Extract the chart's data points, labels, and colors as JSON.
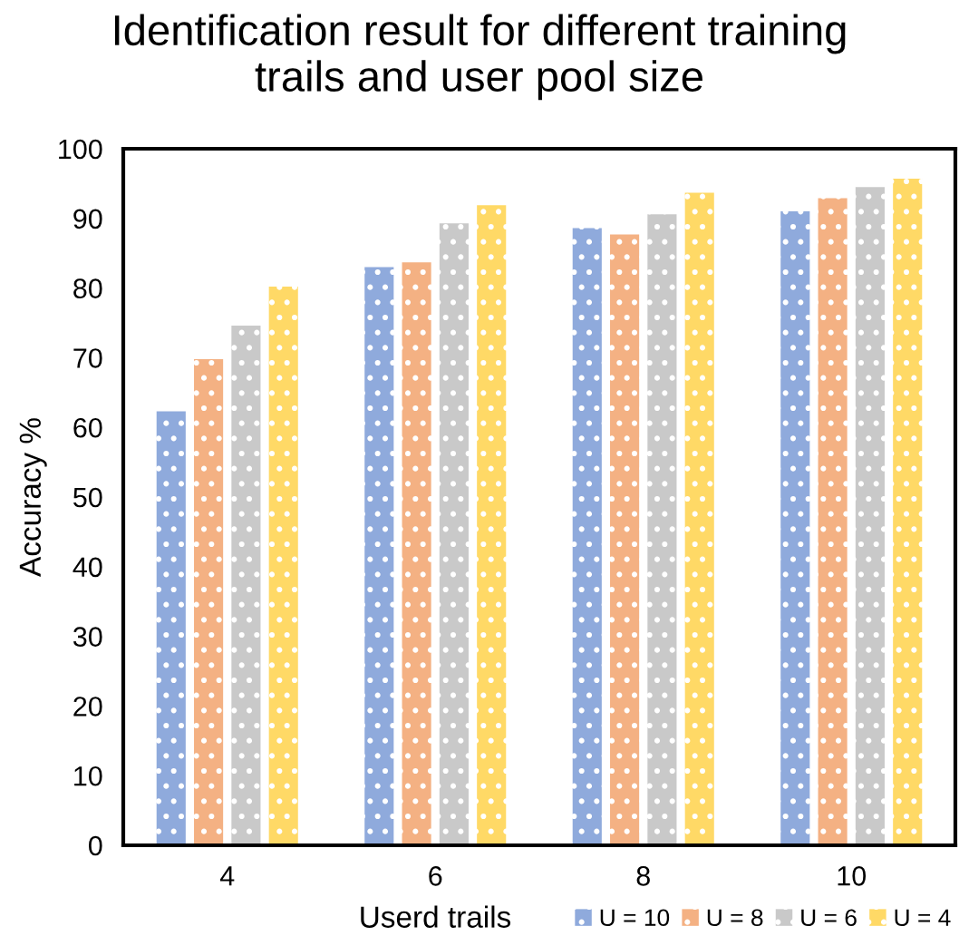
{
  "chart_data": {
    "type": "bar",
    "title": "Identification result for different training\ntrails and user pool size",
    "xlabel": "Userd trails",
    "ylabel": "Accuracy %",
    "categories": [
      "4",
      "6",
      "8",
      "10"
    ],
    "series": [
      {
        "name": "U = 10",
        "color": "#8faadc",
        "values": [
          62.3,
          83.0,
          88.6,
          91.0
        ]
      },
      {
        "name": "U = 8",
        "color": "#f4b183",
        "values": [
          69.8,
          83.7,
          87.7,
          92.9
        ]
      },
      {
        "name": "U = 6",
        "color": "#c9c9c9",
        "values": [
          74.6,
          89.3,
          90.6,
          94.5
        ]
      },
      {
        "name": "U = 4",
        "color": "#ffd966",
        "values": [
          80.2,
          91.9,
          93.7,
          95.7
        ]
      }
    ],
    "ylim": [
      0,
      100
    ],
    "yticks": [
      0,
      10,
      20,
      30,
      40,
      50,
      60,
      70,
      80,
      90,
      100
    ],
    "grid": false,
    "legend": "bottom right"
  }
}
